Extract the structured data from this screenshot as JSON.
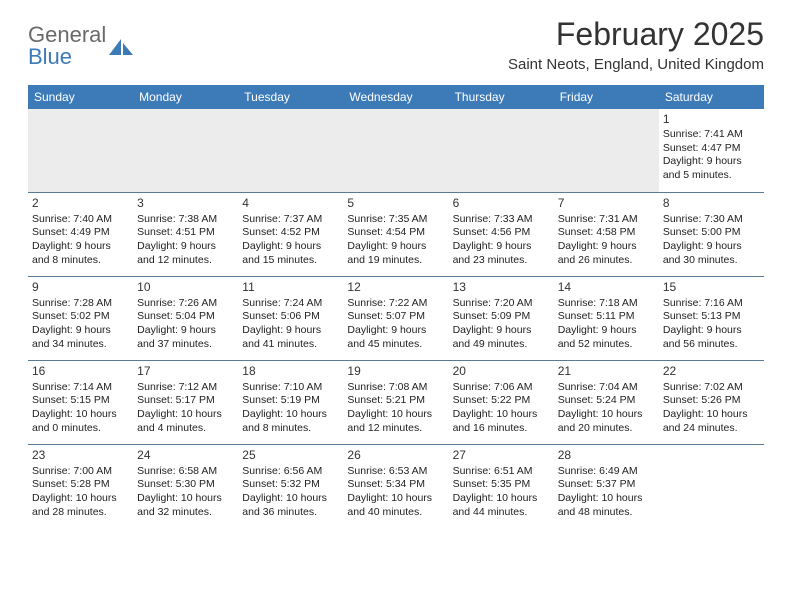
{
  "logo": {
    "text1": "General",
    "text2": "Blue",
    "mark_color": "#3d7ab8"
  },
  "header": {
    "title": "February 2025",
    "location": "Saint Neots, England, United Kingdom"
  },
  "colors": {
    "header_bg": "#3d7ab8",
    "header_text": "#ffffff",
    "row_divider": "#5b7a99",
    "empty_bg": "#ececec"
  },
  "typography": {
    "title_fontsize": 32,
    "location_fontsize": 15,
    "day_header_fontsize": 12,
    "cell_fontsize": 10.5
  },
  "days_of_week": [
    "Sunday",
    "Monday",
    "Tuesday",
    "Wednesday",
    "Thursday",
    "Friday",
    "Saturday"
  ],
  "weeks": [
    [
      null,
      null,
      null,
      null,
      null,
      null,
      {
        "d": "1",
        "sr": "7:41 AM",
        "ss": "4:47 PM",
        "dl": "9 hours and 5 minutes."
      }
    ],
    [
      {
        "d": "2",
        "sr": "7:40 AM",
        "ss": "4:49 PM",
        "dl": "9 hours and 8 minutes."
      },
      {
        "d": "3",
        "sr": "7:38 AM",
        "ss": "4:51 PM",
        "dl": "9 hours and 12 minutes."
      },
      {
        "d": "4",
        "sr": "7:37 AM",
        "ss": "4:52 PM",
        "dl": "9 hours and 15 minutes."
      },
      {
        "d": "5",
        "sr": "7:35 AM",
        "ss": "4:54 PM",
        "dl": "9 hours and 19 minutes."
      },
      {
        "d": "6",
        "sr": "7:33 AM",
        "ss": "4:56 PM",
        "dl": "9 hours and 23 minutes."
      },
      {
        "d": "7",
        "sr": "7:31 AM",
        "ss": "4:58 PM",
        "dl": "9 hours and 26 minutes."
      },
      {
        "d": "8",
        "sr": "7:30 AM",
        "ss": "5:00 PM",
        "dl": "9 hours and 30 minutes."
      }
    ],
    [
      {
        "d": "9",
        "sr": "7:28 AM",
        "ss": "5:02 PM",
        "dl": "9 hours and 34 minutes."
      },
      {
        "d": "10",
        "sr": "7:26 AM",
        "ss": "5:04 PM",
        "dl": "9 hours and 37 minutes."
      },
      {
        "d": "11",
        "sr": "7:24 AM",
        "ss": "5:06 PM",
        "dl": "9 hours and 41 minutes."
      },
      {
        "d": "12",
        "sr": "7:22 AM",
        "ss": "5:07 PM",
        "dl": "9 hours and 45 minutes."
      },
      {
        "d": "13",
        "sr": "7:20 AM",
        "ss": "5:09 PM",
        "dl": "9 hours and 49 minutes."
      },
      {
        "d": "14",
        "sr": "7:18 AM",
        "ss": "5:11 PM",
        "dl": "9 hours and 52 minutes."
      },
      {
        "d": "15",
        "sr": "7:16 AM",
        "ss": "5:13 PM",
        "dl": "9 hours and 56 minutes."
      }
    ],
    [
      {
        "d": "16",
        "sr": "7:14 AM",
        "ss": "5:15 PM",
        "dl": "10 hours and 0 minutes."
      },
      {
        "d": "17",
        "sr": "7:12 AM",
        "ss": "5:17 PM",
        "dl": "10 hours and 4 minutes."
      },
      {
        "d": "18",
        "sr": "7:10 AM",
        "ss": "5:19 PM",
        "dl": "10 hours and 8 minutes."
      },
      {
        "d": "19",
        "sr": "7:08 AM",
        "ss": "5:21 PM",
        "dl": "10 hours and 12 minutes."
      },
      {
        "d": "20",
        "sr": "7:06 AM",
        "ss": "5:22 PM",
        "dl": "10 hours and 16 minutes."
      },
      {
        "d": "21",
        "sr": "7:04 AM",
        "ss": "5:24 PM",
        "dl": "10 hours and 20 minutes."
      },
      {
        "d": "22",
        "sr": "7:02 AM",
        "ss": "5:26 PM",
        "dl": "10 hours and 24 minutes."
      }
    ],
    [
      {
        "d": "23",
        "sr": "7:00 AM",
        "ss": "5:28 PM",
        "dl": "10 hours and 28 minutes."
      },
      {
        "d": "24",
        "sr": "6:58 AM",
        "ss": "5:30 PM",
        "dl": "10 hours and 32 minutes."
      },
      {
        "d": "25",
        "sr": "6:56 AM",
        "ss": "5:32 PM",
        "dl": "10 hours and 36 minutes."
      },
      {
        "d": "26",
        "sr": "6:53 AM",
        "ss": "5:34 PM",
        "dl": "10 hours and 40 minutes."
      },
      {
        "d": "27",
        "sr": "6:51 AM",
        "ss": "5:35 PM",
        "dl": "10 hours and 44 minutes."
      },
      {
        "d": "28",
        "sr": "6:49 AM",
        "ss": "5:37 PM",
        "dl": "10 hours and 48 minutes."
      },
      null
    ]
  ],
  "labels": {
    "sunrise": "Sunrise:",
    "sunset": "Sunset:",
    "daylight": "Daylight:"
  }
}
